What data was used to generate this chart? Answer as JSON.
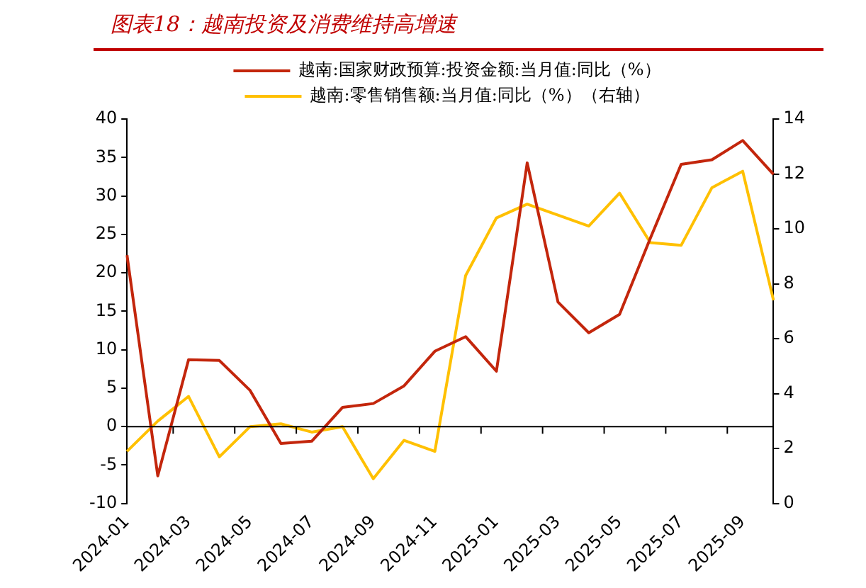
{
  "chart_data": {
    "type": "line",
    "title": "图表18：越南投资及消费维持高增速",
    "categories": [
      "2024-01",
      null,
      "2024-03",
      null,
      "2024-05",
      null,
      "2024-07",
      null,
      "2024-09",
      null,
      "2024-11",
      null,
      "2025-01",
      null,
      "2025-03",
      null,
      "2025-05",
      null,
      "2025-07",
      null,
      "2025-09",
      null
    ],
    "series": [
      {
        "name": "越南:国家财政预算:投资金额:当月值:同比（%）",
        "color": "#c3260c",
        "values": [
          22.3,
          -6.4,
          8.7,
          8.6,
          4.7,
          -2.2,
          -1.9,
          2.5,
          3.0,
          5.3,
          9.8,
          11.7,
          7.2,
          34.3,
          16.2,
          12.2,
          14.6,
          24.5,
          34.1,
          34.7,
          37.2,
          32.8
        ]
      },
      {
        "name": "越南:零售销售额:当月值:同比（%）（右轴）",
        "color": "#ffc000",
        "axis": "y2",
        "values": [
          1.9,
          3.0,
          3.9,
          1.7,
          2.8,
          2.9,
          2.6,
          2.8,
          0.9,
          2.3,
          1.9,
          8.3,
          10.4,
          10.9,
          10.5,
          10.1,
          11.3,
          9.5,
          9.4,
          11.5,
          12.1,
          7.4
        ]
      }
    ],
    "ylim": [
      -10,
      40
    ],
    "yticks": [
      -10,
      -5,
      0,
      5,
      10,
      15,
      20,
      25,
      30,
      35,
      40
    ],
    "y2lim": [
      0,
      14
    ],
    "y2ticks": [
      0,
      2,
      4,
      6,
      8,
      10,
      12,
      14
    ],
    "ref_lines": [
      {
        "axis": "y",
        "value": 0,
        "color": "#000000"
      }
    ],
    "grid": false,
    "legend": "top",
    "marker": "none",
    "line_style": "solid"
  }
}
